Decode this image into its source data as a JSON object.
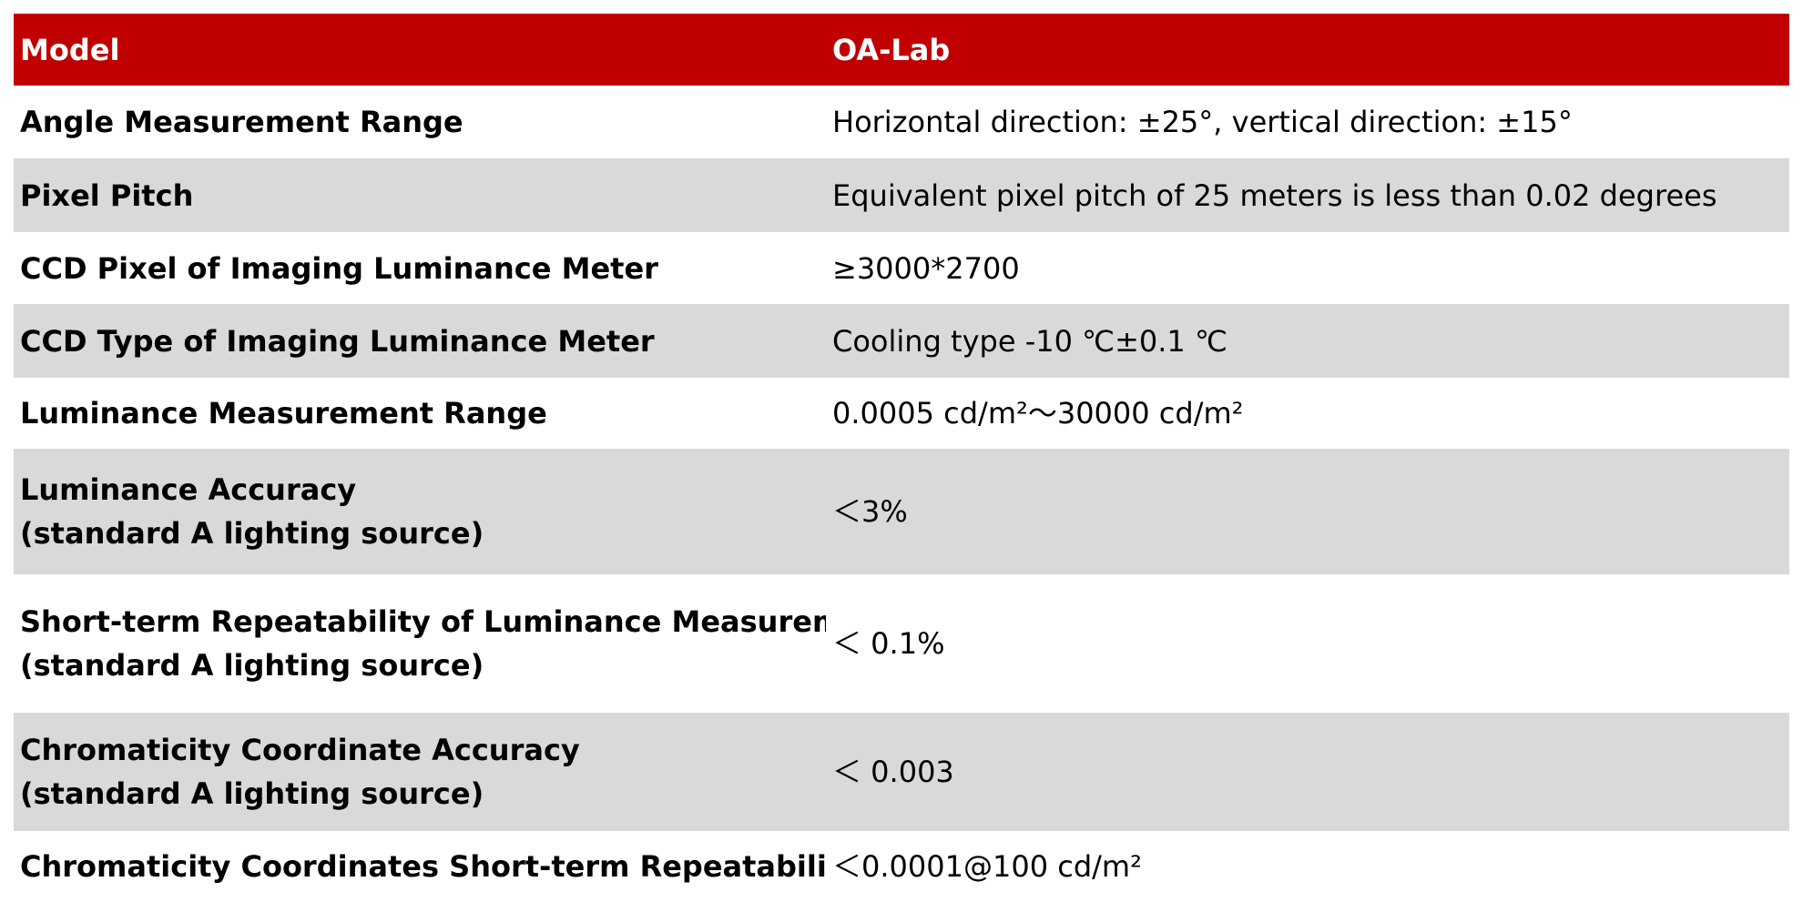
{
  "header": {
    "col1": "Model",
    "col2": "OA-Lab"
  },
  "colors": {
    "header_bg": "#c00000",
    "header_text": "#ffffff",
    "row_shade": "#d9d9d9",
    "row_plain": "#ffffff"
  },
  "rows": [
    {
      "param": [
        "Angle Measurement Range"
      ],
      "value": "Horizontal direction:  ±25°, vertical direction: ±15°"
    },
    {
      "param": [
        "Pixel Pitch"
      ],
      "value": "Equivalent pixel pitch of 25 meters is less than 0.02 degrees"
    },
    {
      "param": [
        "CCD Pixel of Imaging Luminance Meter"
      ],
      "value": "≥3000*2700"
    },
    {
      "param": [
        "CCD Type of Imaging Luminance Meter"
      ],
      "value": "Cooling type  -10 ℃±0.1 ℃"
    },
    {
      "param": [
        "Luminance Measurement Range"
      ],
      "value": "0.0005 cd/m²～30000 cd/m²"
    },
    {
      "param": [
        "Luminance Accuracy",
        "(standard A lighting source)"
      ],
      "value": "＜3%"
    },
    {
      "param": [
        "Short-term Repeatability of Luminance Measurement",
        "(standard A lighting source)"
      ],
      "value": "＜ 0.1%"
    },
    {
      "param": [
        "Chromaticity Coordinate Accuracy",
        "(standard A lighting source)"
      ],
      "value": "＜ 0.003"
    },
    {
      "param": [
        "Chromaticity Coordinates Short-term Repeatability"
      ],
      "value": "＜0.0001@100 cd/m²"
    }
  ]
}
